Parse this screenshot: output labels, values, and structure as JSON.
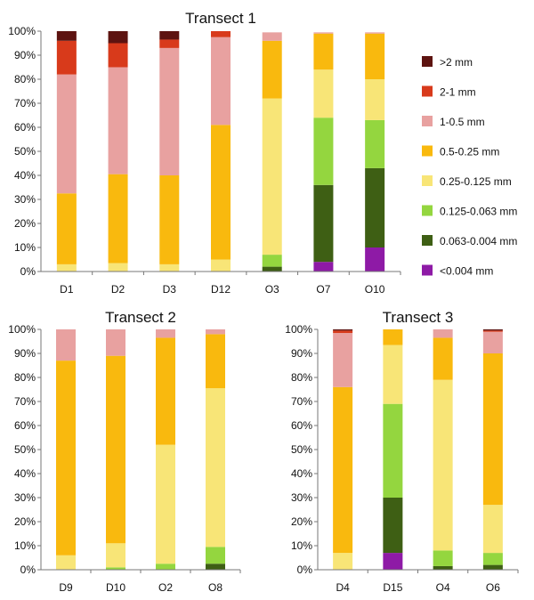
{
  "legend": {
    "placement": "right",
    "entries": [
      ">2 mm",
      "2-1 mm",
      "1-0.5 mm",
      "0.5-0.25 mm",
      "0.25-0.125 mm",
      "0.125-0.063 mm",
      "0.063-0.004 mm",
      "<0.004 mm"
    ]
  },
  "chart_data": [
    {
      "type": "bar",
      "stacked": true,
      "title": "Transect 1",
      "xlabel": "",
      "ylabel": "",
      "ylim": [
        0,
        100
      ],
      "yticks": [
        "0%",
        "10%",
        "20%",
        "30%",
        "40%",
        "50%",
        "60%",
        "70%",
        "80%",
        "90%",
        "100%"
      ],
      "grid": false,
      "categories": [
        "D1",
        "D2",
        "D3",
        "D12",
        "O3",
        "O7",
        "O10"
      ],
      "series": [
        {
          "name": "<0.004 mm",
          "color": "#8e1aa6",
          "values": [
            0,
            0,
            0,
            0,
            0,
            4,
            10
          ]
        },
        {
          "name": "0.063-0.004 mm",
          "color": "#3e5f14",
          "values": [
            0,
            0,
            0,
            0,
            2,
            32,
            33
          ]
        },
        {
          "name": "0.125-0.063 mm",
          "color": "#94d63f",
          "values": [
            0,
            0,
            0,
            0,
            5,
            28,
            20
          ]
        },
        {
          "name": "0.25-0.125 mm",
          "color": "#f8e577",
          "values": [
            3,
            3.5,
            3,
            5,
            65,
            20,
            17
          ]
        },
        {
          "name": "0.5-0.25 mm",
          "color": "#f9b90e",
          "values": [
            29.5,
            37,
            37,
            56,
            24,
            15,
            19
          ]
        },
        {
          "name": "1-0.5 mm",
          "color": "#e8a1a0",
          "values": [
            49.5,
            44.5,
            53,
            36.5,
            3.5,
            0.5,
            0.5
          ]
        },
        {
          "name": "2-1 mm",
          "color": "#d83a1b",
          "values": [
            14,
            10,
            3.5,
            2.5,
            0,
            0,
            0
          ]
        },
        {
          "name": ">2 mm",
          "color": "#5d1310",
          "values": [
            4,
            5,
            3.5,
            0,
            0,
            0,
            0
          ]
        }
      ]
    },
    {
      "type": "bar",
      "stacked": true,
      "title": "Transect 2",
      "xlabel": "",
      "ylabel": "",
      "ylim": [
        0,
        100
      ],
      "yticks": [
        "0%",
        "10%",
        "20%",
        "30%",
        "40%",
        "50%",
        "60%",
        "70%",
        "80%",
        "90%",
        "100%"
      ],
      "grid": false,
      "categories": [
        "D9",
        "D10",
        "O2",
        "O8"
      ],
      "series": [
        {
          "name": "<0.004 mm",
          "color": "#8e1aa6",
          "values": [
            0,
            0,
            0,
            0
          ]
        },
        {
          "name": "0.063-0.004 mm",
          "color": "#3e5f14",
          "values": [
            0,
            0,
            0,
            2.5
          ]
        },
        {
          "name": "0.125-0.063 mm",
          "color": "#94d63f",
          "values": [
            0,
            1,
            2.5,
            7
          ]
        },
        {
          "name": "0.25-0.125 mm",
          "color": "#f8e577",
          "values": [
            6,
            10,
            49.5,
            66
          ]
        },
        {
          "name": "0.5-0.25 mm",
          "color": "#f9b90e",
          "values": [
            81,
            78,
            44.5,
            22.5
          ]
        },
        {
          "name": "1-0.5 mm",
          "color": "#e8a1a0",
          "values": [
            13,
            11,
            3.5,
            2
          ]
        },
        {
          "name": "2-1 mm",
          "color": "#d83a1b",
          "values": [
            0,
            0,
            0,
            0
          ]
        },
        {
          "name": ">2 mm",
          "color": "#5d1310",
          "values": [
            0,
            0,
            0,
            0
          ]
        }
      ]
    },
    {
      "type": "bar",
      "stacked": true,
      "title": "Transect 3",
      "xlabel": "",
      "ylabel": "",
      "ylim": [
        0,
        100
      ],
      "yticks": [
        "0%",
        "10%",
        "20%",
        "30%",
        "40%",
        "50%",
        "60%",
        "70%",
        "80%",
        "90%",
        "100%"
      ],
      "grid": false,
      "categories": [
        "D4",
        "D15",
        "O4",
        "O6"
      ],
      "series": [
        {
          "name": "<0.004 mm",
          "color": "#8e1aa6",
          "values": [
            0,
            7,
            0,
            0
          ]
        },
        {
          "name": "0.063-0.004 mm",
          "color": "#3e5f14",
          "values": [
            0,
            23,
            1.5,
            2
          ]
        },
        {
          "name": "0.125-0.063 mm",
          "color": "#94d63f",
          "values": [
            0,
            39,
            6.5,
            5
          ]
        },
        {
          "name": "0.25-0.125 mm",
          "color": "#f8e577",
          "values": [
            7,
            24.5,
            71,
            20
          ]
        },
        {
          "name": "0.5-0.25 mm",
          "color": "#f9b90e",
          "values": [
            69,
            6.5,
            17.5,
            63
          ]
        },
        {
          "name": "1-0.5 mm",
          "color": "#e8a1a0",
          "values": [
            22.5,
            0,
            3.5,
            9
          ]
        },
        {
          "name": "2-1 mm",
          "color": "#d83a1b",
          "values": [
            1,
            0,
            0,
            0.5
          ]
        },
        {
          "name": ">2 mm",
          "color": "#5d1310",
          "values": [
            0.5,
            0,
            0,
            0.5
          ]
        }
      ]
    }
  ]
}
